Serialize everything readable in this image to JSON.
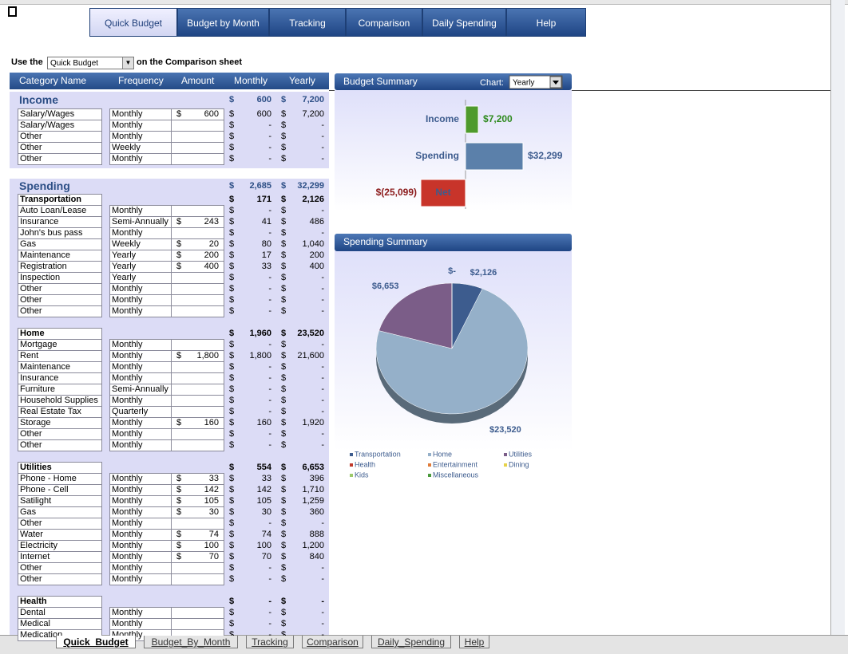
{
  "tabs": [
    "Quick Budget",
    "Budget by Month",
    "Tracking",
    "Comparison",
    "Daily Spending",
    "Help"
  ],
  "instruction": {
    "prefix": "Use the",
    "dropdown": "Quick Budget",
    "suffix": "on the Comparison sheet"
  },
  "table": {
    "columns": [
      "Category Name",
      "Frequency",
      "Amount",
      "Monthly",
      "Yearly"
    ],
    "currency": "$",
    "income": {
      "name": "Income",
      "monthly": "600",
      "yearly": "7,200",
      "rows": [
        [
          "Salary/Wages",
          "Monthly",
          "600",
          "600",
          "7,200"
        ],
        [
          "Salary/Wages",
          "Monthly",
          null,
          "-",
          "-"
        ],
        [
          "Other",
          "Monthly",
          null,
          "-",
          "-"
        ],
        [
          "Other",
          "Weekly",
          null,
          "-",
          "-"
        ],
        [
          "Other",
          "Monthly",
          null,
          "-",
          "-"
        ]
      ]
    },
    "spending": {
      "name": "Spending",
      "monthly": "2,685",
      "yearly": "32,299",
      "groups": [
        {
          "name": "Transportation",
          "monthly": "171",
          "yearly": "2,126",
          "rows": [
            [
              "Auto Loan/Lease",
              "Monthly",
              null,
              "-",
              "-"
            ],
            [
              "Insurance",
              "Semi-Annually",
              "243",
              "41",
              "486"
            ],
            [
              "John's bus pass",
              "Monthly",
              null,
              "-",
              "-"
            ],
            [
              "Gas",
              "Weekly",
              "20",
              "80",
              "1,040"
            ],
            [
              "Maintenance",
              "Yearly",
              "200",
              "17",
              "200"
            ],
            [
              "Registration",
              "Yearly",
              "400",
              "33",
              "400"
            ],
            [
              "Inspection",
              "Yearly",
              null,
              "-",
              "-"
            ],
            [
              "Other",
              "Monthly",
              null,
              "-",
              "-"
            ],
            [
              "Other",
              "Monthly",
              null,
              "-",
              "-"
            ],
            [
              "Other",
              "Monthly",
              null,
              "-",
              "-"
            ]
          ]
        },
        {
          "name": "Home",
          "monthly": "1,960",
          "yearly": "23,520",
          "rows": [
            [
              "Mortgage",
              "Monthly",
              null,
              "-",
              "-"
            ],
            [
              "Rent",
              "Monthly",
              "1,800",
              "1,800",
              "21,600"
            ],
            [
              "Maintenance",
              "Monthly",
              null,
              "-",
              "-"
            ],
            [
              "Insurance",
              "Monthly",
              null,
              "-",
              "-"
            ],
            [
              "Furniture",
              "Semi-Annually",
              null,
              "-",
              "-"
            ],
            [
              "Household Supplies",
              "Monthly",
              null,
              "-",
              "-"
            ],
            [
              "Real Estate Tax",
              "Quarterly",
              null,
              "-",
              "-"
            ],
            [
              "Storage",
              "Monthly",
              "160",
              "160",
              "1,920"
            ],
            [
              "Other",
              "Monthly",
              null,
              "-",
              "-"
            ],
            [
              "Other",
              "Monthly",
              null,
              "-",
              "-"
            ]
          ]
        },
        {
          "name": "Utilities",
          "monthly": "554",
          "yearly": "6,653",
          "rows": [
            [
              "Phone - Home",
              "Monthly",
              "33",
              "33",
              "396"
            ],
            [
              "Phone - Cell",
              "Monthly",
              "142",
              "142",
              "1,710"
            ],
            [
              "Satilight",
              "Monthly",
              "105",
              "105",
              "1,259"
            ],
            [
              "Gas",
              "Monthly",
              "30",
              "30",
              "360"
            ],
            [
              "Other",
              "Monthly",
              null,
              "-",
              "-"
            ],
            [
              "Water",
              "Monthly",
              "74",
              "74",
              "888"
            ],
            [
              "Electricity",
              "Monthly",
              "100",
              "100",
              "1,200"
            ],
            [
              "Internet",
              "Monthly",
              "70",
              "70",
              "840"
            ],
            [
              "Other",
              "Monthly",
              null,
              "-",
              "-"
            ],
            [
              "Other",
              "Monthly",
              null,
              "-",
              "-"
            ]
          ]
        },
        {
          "name": "Health",
          "monthly": "-",
          "yearly": "-",
          "rows": [
            [
              "Dental",
              "Monthly",
              null,
              "-",
              "-"
            ],
            [
              "Medical",
              "Monthly",
              null,
              "-",
              "-"
            ],
            [
              "Medication",
              "Monthly",
              null,
              "-",
              "-"
            ]
          ]
        }
      ]
    }
  },
  "budget_summary": {
    "type": "bar",
    "title": "Budget Summary",
    "chart_label": "Chart:",
    "chart_option": "Yearly",
    "categories": [
      "Income",
      "Spending",
      "Net"
    ],
    "values": [
      7200,
      32299,
      -25099
    ],
    "value_labels": [
      "$7,200",
      "$32,299",
      "$(25,099)"
    ],
    "colors": [
      "#4e9a2c",
      "#5b80aa",
      "#c8342a"
    ]
  },
  "spending_summary": {
    "type": "pie",
    "title": "Spending Summary",
    "categories": [
      "Transportation",
      "Home",
      "Utilities",
      "Health",
      "Entertainment",
      "Dining",
      "Kids",
      "Miscellaneous"
    ],
    "values": [
      2126,
      23520,
      6653,
      0,
      0,
      0,
      0,
      0
    ],
    "value_labels": [
      "$2,126",
      "$23,520",
      "$6,653",
      "$-",
      null,
      null,
      null,
      null
    ],
    "colors": [
      "#3d5c8e",
      "#95b0c9",
      "#7b5d88",
      "#c0392b",
      "#e07b39",
      "#e6d24a",
      "#9cc96b",
      "#4a9a3c"
    ]
  },
  "sheet_tabs": [
    "Quick_Budget",
    "Budget_By_Month",
    "Tracking",
    "Comparison",
    "Daily_Spending",
    "Help"
  ]
}
